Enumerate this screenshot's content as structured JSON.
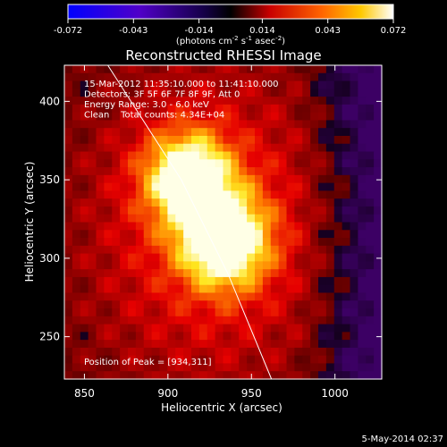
{
  "chart_data": {
    "type": "heatmap",
    "title": "Reconstructed RHESSI Image",
    "colorbar": {
      "ticks": [
        "-0.072",
        "-0.043",
        "-0.014",
        "0.014",
        "0.043",
        "0.072"
      ],
      "range": [
        -0.072,
        0.072
      ],
      "unit_label_parts": [
        "(photons cm",
        "-2",
        " s",
        "-1",
        " asec",
        "-2",
        ")"
      ]
    },
    "xlabel": "Heliocentric X (arcsec)",
    "ylabel": "Heliocentric Y (arcsec)",
    "xlim": [
      838,
      1028
    ],
    "ylim": [
      223,
      423
    ],
    "xticks": [
      850,
      900,
      950,
      1000
    ],
    "yticks": [
      250,
      300,
      350,
      400
    ],
    "sources": [
      {
        "x": 934,
        "y": 311,
        "peak": 1.0
      },
      {
        "x": 912,
        "y": 352,
        "peak": 0.92
      }
    ],
    "annotations": [
      "15-Mar-2012 11:35:10.000 to 11:41:10.000",
      "Detectors: 3F 5F 6F 7F 8F 9F, Att 0",
      "Energy Range: 3.0 - 6.0 keV",
      "Clean    Total counts: 4.34E+04"
    ],
    "peak_label": "Position of Peak = [934,311]",
    "limb_line": [
      [
        864,
        423
      ],
      [
        908,
        350
      ],
      [
        936,
        290
      ],
      [
        962,
        223
      ]
    ]
  },
  "footer_date": "5-May-2014 02:37",
  "colors": {
    "background": "#000000",
    "axes": "#ffffff"
  }
}
